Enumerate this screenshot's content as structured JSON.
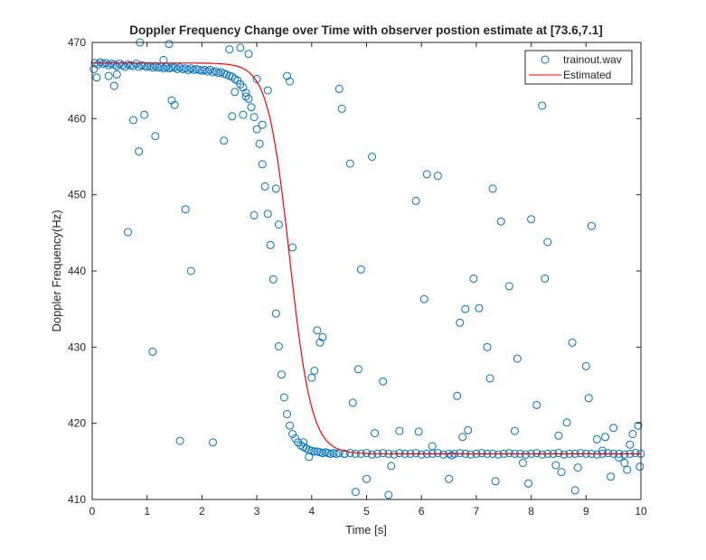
{
  "chart_data": {
    "type": "scatter",
    "title": "Doppler Frequency Change over Time with observer postion estimate at [73.6,7.1]",
    "xlabel": "Time [s]",
    "ylabel": "Doppler Frequency(Hz)",
    "xlim": [
      0,
      10
    ],
    "ylim": [
      410,
      470
    ],
    "xticks": [
      0,
      1,
      2,
      3,
      4,
      5,
      6,
      7,
      8,
      9,
      10
    ],
    "yticks": [
      410,
      420,
      430,
      440,
      450,
      460,
      470
    ],
    "grid": false,
    "legend_position": "top-right",
    "colors": {
      "scatter": "#0072BD",
      "line": "#FF0000",
      "axis": "#262626"
    },
    "estimated_model": {
      "f_high": 467.3,
      "f_low": 416.0,
      "t_center": 3.6,
      "width": 0.2
    },
    "series": [
      {
        "name": "trainout.wav",
        "kind": "scatter",
        "x": [
          0.05,
          0.1,
          0.15,
          0.2,
          0.25,
          0.3,
          0.35,
          0.4,
          0.45,
          0.5,
          0.55,
          0.6,
          0.65,
          0.7,
          0.75,
          0.8,
          0.85,
          0.9,
          0.95,
          1.0,
          1.05,
          1.1,
          1.15,
          1.2,
          1.25,
          1.3,
          1.35,
          1.4,
          1.45,
          1.5,
          1.55,
          1.6,
          1.65,
          1.7,
          1.75,
          1.8,
          1.85,
          1.9,
          1.95,
          2.0,
          2.05,
          2.1,
          2.15,
          2.2,
          2.25,
          2.3,
          2.35,
          2.4,
          2.45,
          2.5,
          2.55,
          2.6,
          2.65,
          2.7,
          2.75,
          2.8,
          2.85,
          2.9,
          2.95,
          3.0,
          3.05,
          3.1,
          3.15,
          3.2,
          3.25,
          3.3,
          3.35,
          3.4,
          3.45,
          3.5,
          3.55,
          3.6,
          3.65,
          3.7,
          3.75,
          3.8,
          3.85,
          3.9,
          3.95,
          4.0,
          4.05,
          4.1,
          4.15,
          4.2,
          4.25,
          4.3,
          4.35,
          4.4,
          4.45,
          4.5,
          4.6,
          4.7,
          4.8,
          4.9,
          5.0,
          5.1,
          5.2,
          5.3,
          5.4,
          5.5,
          5.6,
          5.7,
          5.8,
          5.9,
          6.0,
          6.1,
          6.2,
          6.3,
          6.4,
          6.5,
          6.6,
          6.7,
          6.8,
          6.9,
          7.0,
          7.1,
          7.2,
          7.3,
          7.4,
          7.5,
          7.6,
          7.7,
          7.8,
          7.9,
          8.0,
          8.1,
          8.2,
          8.3,
          8.4,
          8.5,
          8.6,
          8.7,
          8.8,
          8.9,
          9.0,
          9.1,
          9.2,
          9.3,
          9.4,
          9.5,
          9.6,
          9.7,
          9.8,
          9.9,
          10.0,
          0.03,
          0.08,
          0.3,
          0.4,
          0.45,
          0.65,
          0.75,
          0.85,
          0.87,
          0.95,
          1.1,
          1.15,
          1.3,
          1.35,
          1.4,
          1.45,
          1.5,
          1.6,
          1.7,
          1.8,
          2.2,
          2.4,
          2.5,
          2.55,
          2.6,
          2.7,
          2.75,
          2.8,
          2.85,
          2.95,
          3.0,
          3.1,
          3.2,
          3.35,
          3.4,
          3.55,
          3.6,
          3.65,
          3.85,
          3.95,
          4.0,
          4.05,
          4.1,
          4.15,
          4.2,
          4.5,
          4.55,
          4.6,
          4.7,
          4.75,
          4.8,
          4.85,
          4.9,
          5.0,
          5.1,
          5.15,
          5.3,
          5.4,
          5.45,
          5.6,
          5.9,
          5.95,
          6.05,
          6.1,
          6.2,
          6.3,
          6.5,
          6.55,
          6.65,
          6.7,
          6.75,
          6.8,
          6.85,
          6.95,
          7.05,
          7.2,
          7.25,
          7.3,
          7.35,
          7.45,
          7.6,
          7.7,
          7.75,
          7.85,
          7.95,
          8.0,
          8.1,
          8.2,
          8.25,
          8.3,
          8.45,
          8.5,
          8.55,
          8.65,
          8.75,
          8.8,
          8.85,
          9.0,
          9.05,
          9.1,
          9.2,
          9.3,
          9.35,
          9.45,
          9.5,
          9.6,
          9.7,
          9.75,
          9.8,
          9.85,
          9.95,
          9.98
        ],
        "y": [
          467.3,
          467.1,
          467.4,
          467.2,
          467.3,
          467.0,
          467.2,
          467.1,
          466.9,
          467.2,
          467.0,
          466.8,
          467.1,
          467.0,
          466.9,
          467.2,
          466.8,
          467.0,
          466.9,
          466.8,
          466.9,
          466.7,
          466.9,
          466.7,
          466.8,
          466.6,
          466.8,
          466.6,
          466.7,
          466.7,
          466.5,
          466.7,
          466.5,
          466.6,
          466.4,
          466.6,
          466.4,
          466.5,
          466.4,
          466.3,
          466.4,
          466.2,
          466.4,
          466.1,
          466.2,
          466.0,
          466.1,
          465.9,
          465.8,
          465.6,
          465.5,
          465.2,
          465.0,
          464.5,
          464.1,
          463.4,
          462.6,
          461.5,
          460.2,
          458.6,
          456.7,
          454.0,
          451.1,
          447.5,
          443.4,
          438.9,
          434.4,
          430.1,
          426.4,
          423.4,
          421.2,
          419.7,
          418.6,
          418.0,
          417.5,
          417.1,
          416.9,
          416.7,
          416.5,
          416.4,
          416.3,
          416.3,
          416.2,
          416.1,
          416.2,
          416.1,
          416.0,
          416.1,
          416.0,
          416.1,
          416.0,
          416.1,
          416.0,
          416.0,
          416.1,
          415.9,
          416.0,
          416.1,
          416.0,
          415.9,
          416.1,
          416.0,
          416.0,
          416.1,
          415.9,
          416.0,
          416.0,
          416.1,
          415.9,
          416.0,
          416.0,
          416.1,
          416.0,
          415.9,
          416.0,
          416.1,
          416.0,
          416.0,
          415.9,
          416.0,
          416.1,
          416.0,
          416.0,
          415.9,
          416.0,
          416.1,
          415.9,
          416.0,
          416.0,
          416.1,
          415.9,
          416.0,
          416.0,
          416.1,
          416.0,
          416.0,
          415.9,
          416.0,
          416.1,
          416.0,
          416.0,
          415.9,
          416.0,
          416.1,
          416.0,
          466.5,
          465.4,
          465.6,
          464.3,
          465.8,
          445.1,
          459.8,
          455.7,
          470.0,
          460.5,
          429.4,
          457.7,
          467.7,
          466.8,
          469.8,
          462.4,
          461.8,
          417.7,
          448.1,
          440.0,
          417.5,
          457.1,
          469.1,
          460.3,
          463.5,
          469.3,
          460.5,
          462.9,
          468.5,
          447.3,
          465.2,
          459.2,
          463.7,
          450.8,
          446.1,
          465.6,
          464.9,
          443.1,
          417.5,
          415.6,
          426.0,
          426.9,
          432.2,
          430.6,
          431.3,
          463.9,
          461.3,
          416.0,
          454.1,
          422.7,
          411.0,
          427.1,
          440.2,
          412.7,
          455.0,
          418.7,
          425.5,
          410.6,
          414.4,
          419.0,
          449.2,
          418.9,
          436.3,
          452.7,
          417.0,
          452.5,
          412.7,
          415.8,
          423.6,
          433.2,
          418.2,
          435.0,
          419.1,
          439.0,
          435.1,
          430.0,
          425.9,
          450.8,
          412.4,
          446.5,
          438.0,
          419.0,
          428.5,
          414.8,
          412.1,
          446.8,
          422.4,
          461.7,
          439.0,
          443.8,
          414.5,
          418.4,
          413.6,
          420.1,
          430.6,
          411.2,
          414.2,
          427.5,
          423.3,
          445.9,
          417.9,
          416.4,
          418.2,
          413.0,
          419.4,
          415.5,
          414.8,
          413.9,
          417.2,
          418.6,
          419.7,
          414.3
        ]
      },
      {
        "name": "Estimated",
        "kind": "line"
      }
    ]
  }
}
